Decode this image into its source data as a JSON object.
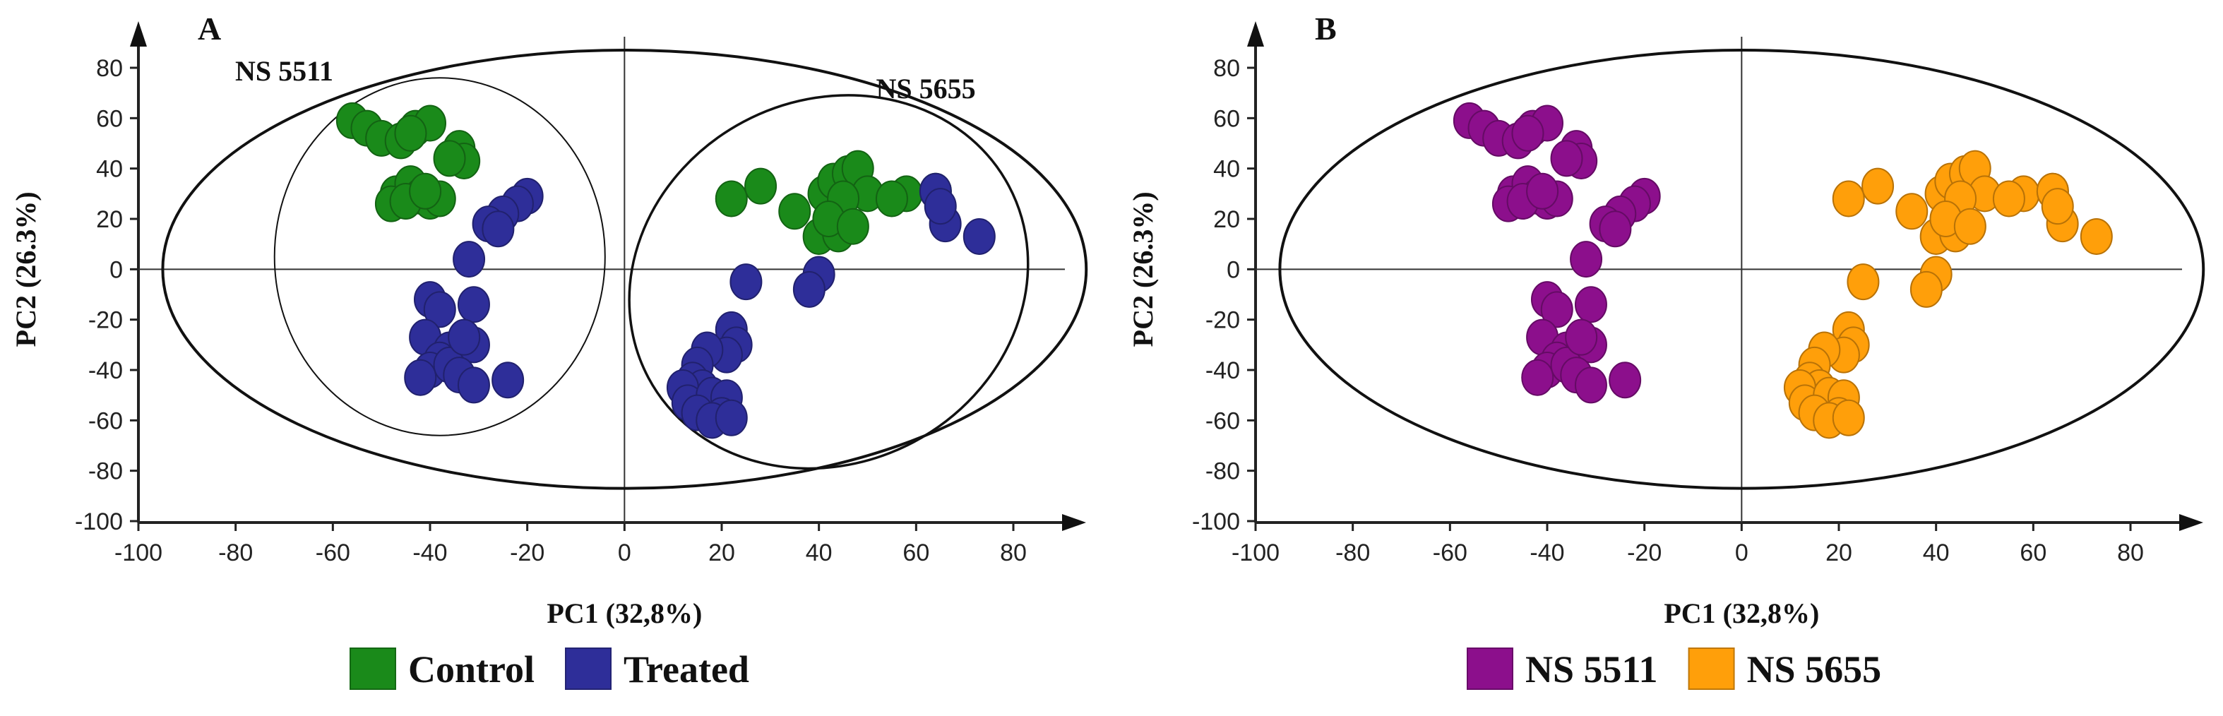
{
  "chart_data": [
    {
      "type": "scatter",
      "panel_label": "A",
      "xlabel": "PC1 (32,8%)",
      "ylabel": "PC2 (26.3%)",
      "xlim": [
        -100,
        95
      ],
      "ylim": [
        -100,
        95
      ],
      "xticks": [
        -100,
        -80,
        -60,
        -40,
        -20,
        0,
        20,
        40,
        60,
        80
      ],
      "yticks": [
        80,
        60,
        40,
        20,
        0,
        -20,
        -40,
        -60,
        -80,
        -100
      ],
      "legend_position": "bottom",
      "annotations": [
        {
          "text": "NS 5511",
          "x": -70,
          "y": 75
        },
        {
          "text": "NS 5655",
          "x": 62,
          "y": 68
        }
      ],
      "ellipses": [
        {
          "name": "hotelling-t2",
          "cx": 0,
          "cy": 0,
          "rx": 95,
          "ry": 87,
          "angle": 0,
          "weight": "thick"
        },
        {
          "name": "ns-5511-group",
          "cx": -38,
          "cy": 5,
          "rx": 34,
          "ry": 71,
          "angle": 0,
          "weight": "thin"
        },
        {
          "name": "ns-5655-group",
          "cx": 42,
          "cy": -5,
          "rx": 42,
          "ry": 72,
          "angle": -28,
          "weight": "medium"
        }
      ],
      "series": [
        {
          "name": "Control",
          "color": "#1a8a1a",
          "points": [
            [
              -56,
              59
            ],
            [
              -53,
              56
            ],
            [
              -50,
              52
            ],
            [
              -46,
              51
            ],
            [
              -43,
              56
            ],
            [
              -40,
              58
            ],
            [
              -44,
              54
            ],
            [
              -34,
              48
            ],
            [
              -33,
              43
            ],
            [
              -36,
              44
            ],
            [
              -47,
              30
            ],
            [
              -44,
              34
            ],
            [
              -42,
              29
            ],
            [
              -48,
              26
            ],
            [
              -40,
              27
            ],
            [
              -38,
              28
            ],
            [
              -45,
              27
            ],
            [
              -41,
              31
            ],
            [
              22,
              28
            ],
            [
              28,
              33
            ],
            [
              35,
              23
            ],
            [
              41,
              30
            ],
            [
              43,
              35
            ],
            [
              46,
              38
            ],
            [
              48,
              40
            ],
            [
              50,
              30
            ],
            [
              45,
              28
            ],
            [
              58,
              30
            ],
            [
              64,
              31
            ],
            [
              40,
              13
            ],
            [
              44,
              14
            ],
            [
              42,
              20
            ],
            [
              47,
              17
            ],
            [
              55,
              28
            ]
          ]
        },
        {
          "name": "Treated",
          "color": "#2e2e99",
          "points": [
            [
              -20,
              29
            ],
            [
              -22,
              26
            ],
            [
              -25,
              22
            ],
            [
              -28,
              18
            ],
            [
              -26,
              16
            ],
            [
              -32,
              4
            ],
            [
              -40,
              -12
            ],
            [
              -38,
              -16
            ],
            [
              -31,
              -14
            ],
            [
              -41,
              -27
            ],
            [
              -36,
              -32
            ],
            [
              -38,
              -36
            ],
            [
              -40,
              -40
            ],
            [
              -36,
              -38
            ],
            [
              -31,
              -30
            ],
            [
              -33,
              -27
            ],
            [
              -34,
              -42
            ],
            [
              -31,
              -46
            ],
            [
              -24,
              -44
            ],
            [
              -42,
              -43
            ],
            [
              64,
              31
            ],
            [
              66,
              18
            ],
            [
              73,
              13
            ],
            [
              65,
              25
            ],
            [
              40,
              -2
            ],
            [
              38,
              -8
            ],
            [
              25,
              -5
            ],
            [
              22,
              -24
            ],
            [
              23,
              -30
            ],
            [
              21,
              -34
            ],
            [
              17,
              -32
            ],
            [
              15,
              -38
            ],
            [
              14,
              -44
            ],
            [
              16,
              -47
            ],
            [
              12,
              -47
            ],
            [
              13,
              -53
            ],
            [
              18,
              -50
            ],
            [
              21,
              -51
            ],
            [
              20,
              -58
            ],
            [
              15,
              -57
            ],
            [
              18,
              -60
            ],
            [
              22,
              -59
            ]
          ]
        }
      ]
    },
    {
      "type": "scatter",
      "panel_label": "B",
      "xlabel": "PC1 (32,8%)",
      "ylabel": "PC2 (26.3%)",
      "xlim": [
        -100,
        95
      ],
      "ylim": [
        -100,
        95
      ],
      "xticks": [
        -100,
        -80,
        -60,
        -40,
        -20,
        0,
        20,
        40,
        60,
        80
      ],
      "yticks": [
        80,
        60,
        40,
        20,
        0,
        -20,
        -40,
        -60,
        -80,
        -100
      ],
      "legend_position": "bottom",
      "annotations": [],
      "ellipses": [
        {
          "name": "hotelling-t2",
          "cx": 0,
          "cy": 0,
          "rx": 95,
          "ry": 87,
          "angle": 0,
          "weight": "thick"
        }
      ],
      "series": [
        {
          "name": "NS 5511",
          "color": "#8c0f8c",
          "points": [
            [
              -56,
              59
            ],
            [
              -53,
              56
            ],
            [
              -50,
              52
            ],
            [
              -46,
              51
            ],
            [
              -43,
              56
            ],
            [
              -40,
              58
            ],
            [
              -44,
              54
            ],
            [
              -34,
              48
            ],
            [
              -33,
              43
            ],
            [
              -36,
              44
            ],
            [
              -47,
              30
            ],
            [
              -44,
              34
            ],
            [
              -42,
              29
            ],
            [
              -48,
              26
            ],
            [
              -40,
              27
            ],
            [
              -38,
              28
            ],
            [
              -45,
              27
            ],
            [
              -41,
              31
            ],
            [
              -20,
              29
            ],
            [
              -22,
              26
            ],
            [
              -25,
              22
            ],
            [
              -28,
              18
            ],
            [
              -26,
              16
            ],
            [
              -32,
              4
            ],
            [
              -40,
              -12
            ],
            [
              -38,
              -16
            ],
            [
              -31,
              -14
            ],
            [
              -41,
              -27
            ],
            [
              -36,
              -32
            ],
            [
              -38,
              -36
            ],
            [
              -40,
              -40
            ],
            [
              -36,
              -38
            ],
            [
              -31,
              -30
            ],
            [
              -33,
              -27
            ],
            [
              -34,
              -42
            ],
            [
              -31,
              -46
            ],
            [
              -24,
              -44
            ],
            [
              -42,
              -43
            ]
          ]
        },
        {
          "name": "NS 5655",
          "color": "#ff9f0a",
          "points": [
            [
              22,
              28
            ],
            [
              28,
              33
            ],
            [
              35,
              23
            ],
            [
              41,
              30
            ],
            [
              43,
              35
            ],
            [
              46,
              38
            ],
            [
              48,
              40
            ],
            [
              50,
              30
            ],
            [
              45,
              28
            ],
            [
              58,
              30
            ],
            [
              64,
              31
            ],
            [
              40,
              13
            ],
            [
              44,
              14
            ],
            [
              42,
              20
            ],
            [
              47,
              17
            ],
            [
              55,
              28
            ],
            [
              64,
              31
            ],
            [
              66,
              18
            ],
            [
              73,
              13
            ],
            [
              65,
              25
            ],
            [
              40,
              -2
            ],
            [
              38,
              -8
            ],
            [
              25,
              -5
            ],
            [
              22,
              -24
            ],
            [
              23,
              -30
            ],
            [
              21,
              -34
            ],
            [
              17,
              -32
            ],
            [
              15,
              -38
            ],
            [
              14,
              -44
            ],
            [
              16,
              -47
            ],
            [
              12,
              -47
            ],
            [
              13,
              -53
            ],
            [
              18,
              -50
            ],
            [
              21,
              -51
            ],
            [
              20,
              -58
            ],
            [
              15,
              -57
            ],
            [
              18,
              -60
            ],
            [
              22,
              -59
            ]
          ]
        }
      ]
    }
  ]
}
